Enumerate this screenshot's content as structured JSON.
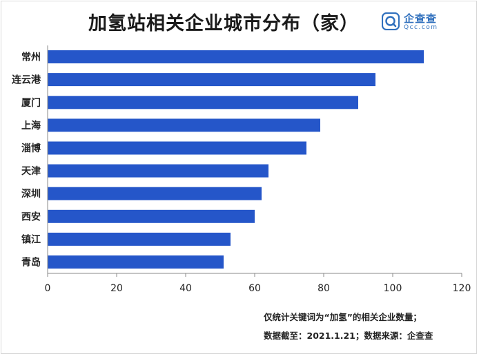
{
  "title": "加氢站相关企业城市分布（家）",
  "logo": {
    "name": "企查查",
    "sub": "Qcc.com",
    "icon": "qcc-logo-icon"
  },
  "colors": {
    "bar": "#2556c9",
    "axis": "#888888",
    "text": "#222222",
    "logo": "#2f6fbd"
  },
  "chart_data": {
    "type": "bar",
    "orientation": "horizontal",
    "categories": [
      "常州",
      "连云港",
      "厦门",
      "上海",
      "淄博",
      "天津",
      "深圳",
      "西安",
      "镇江",
      "青岛"
    ],
    "values": [
      109,
      95,
      90,
      79,
      75,
      64,
      62,
      60,
      53,
      51
    ],
    "xlim": [
      0,
      120
    ],
    "xticks": [
      0,
      20,
      40,
      60,
      80,
      100,
      120
    ],
    "grid": false,
    "title": "加氢站相关企业城市分布（家）"
  },
  "notes": [
    "仅统计关键词为“加氢”的相关企业数量；",
    "数据截至：2021.1.21；数据来源：企查查"
  ]
}
